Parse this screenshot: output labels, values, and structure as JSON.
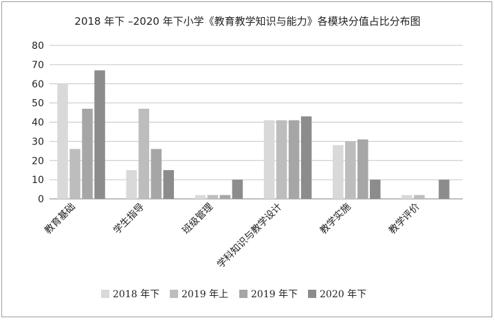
{
  "chart_data": {
    "type": "bar",
    "title": "2018 年下 –2020 年下小学《教育教学知识与能力》各模块分值占比分布图",
    "categories": [
      "教育基础",
      "学生指导",
      "班级管理",
      "学科知识与教学设计",
      "教学实施",
      "教学评价"
    ],
    "series": [
      {
        "name": "2018 年下",
        "color": "#d9d9d9",
        "values": [
          60,
          15,
          2,
          41,
          28,
          2
        ]
      },
      {
        "name": "2019 年上",
        "color": "#bdbdbd",
        "values": [
          26,
          47,
          2,
          41,
          30,
          2
        ]
      },
      {
        "name": "2019 年下",
        "color": "#a6a6a6",
        "values": [
          47,
          26,
          2,
          41,
          31,
          0
        ]
      },
      {
        "name": "2020 年下",
        "color": "#8c8c8c",
        "values": [
          67,
          15,
          10,
          43,
          10,
          10
        ]
      }
    ],
    "yticks": [
      0,
      10,
      20,
      30,
      40,
      50,
      60,
      70,
      80
    ],
    "ylim": [
      0,
      80
    ],
    "grid": true,
    "legend_position": "bottom"
  }
}
